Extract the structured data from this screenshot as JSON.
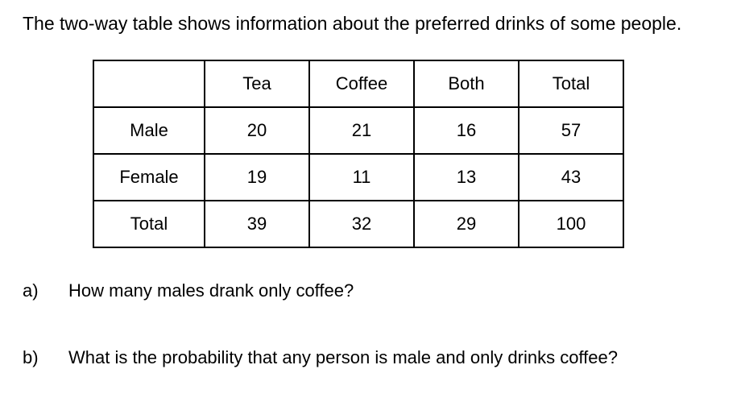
{
  "intro": "The two-way table shows information about the preferred drinks of some people.",
  "table": {
    "header": [
      "",
      "Tea",
      "Coffee",
      "Both",
      "Total"
    ],
    "rows": [
      [
        "Male",
        "20",
        "21",
        "16",
        "57"
      ],
      [
        "Female",
        "19",
        "11",
        "13",
        "43"
      ],
      [
        "Total",
        "39",
        "32",
        "29",
        "100"
      ]
    ]
  },
  "questions": [
    {
      "label": "a)",
      "text": "How many males drank only coffee?"
    },
    {
      "label": "b)",
      "text": "What is the probability that any person is male and only drinks coffee?"
    }
  ]
}
